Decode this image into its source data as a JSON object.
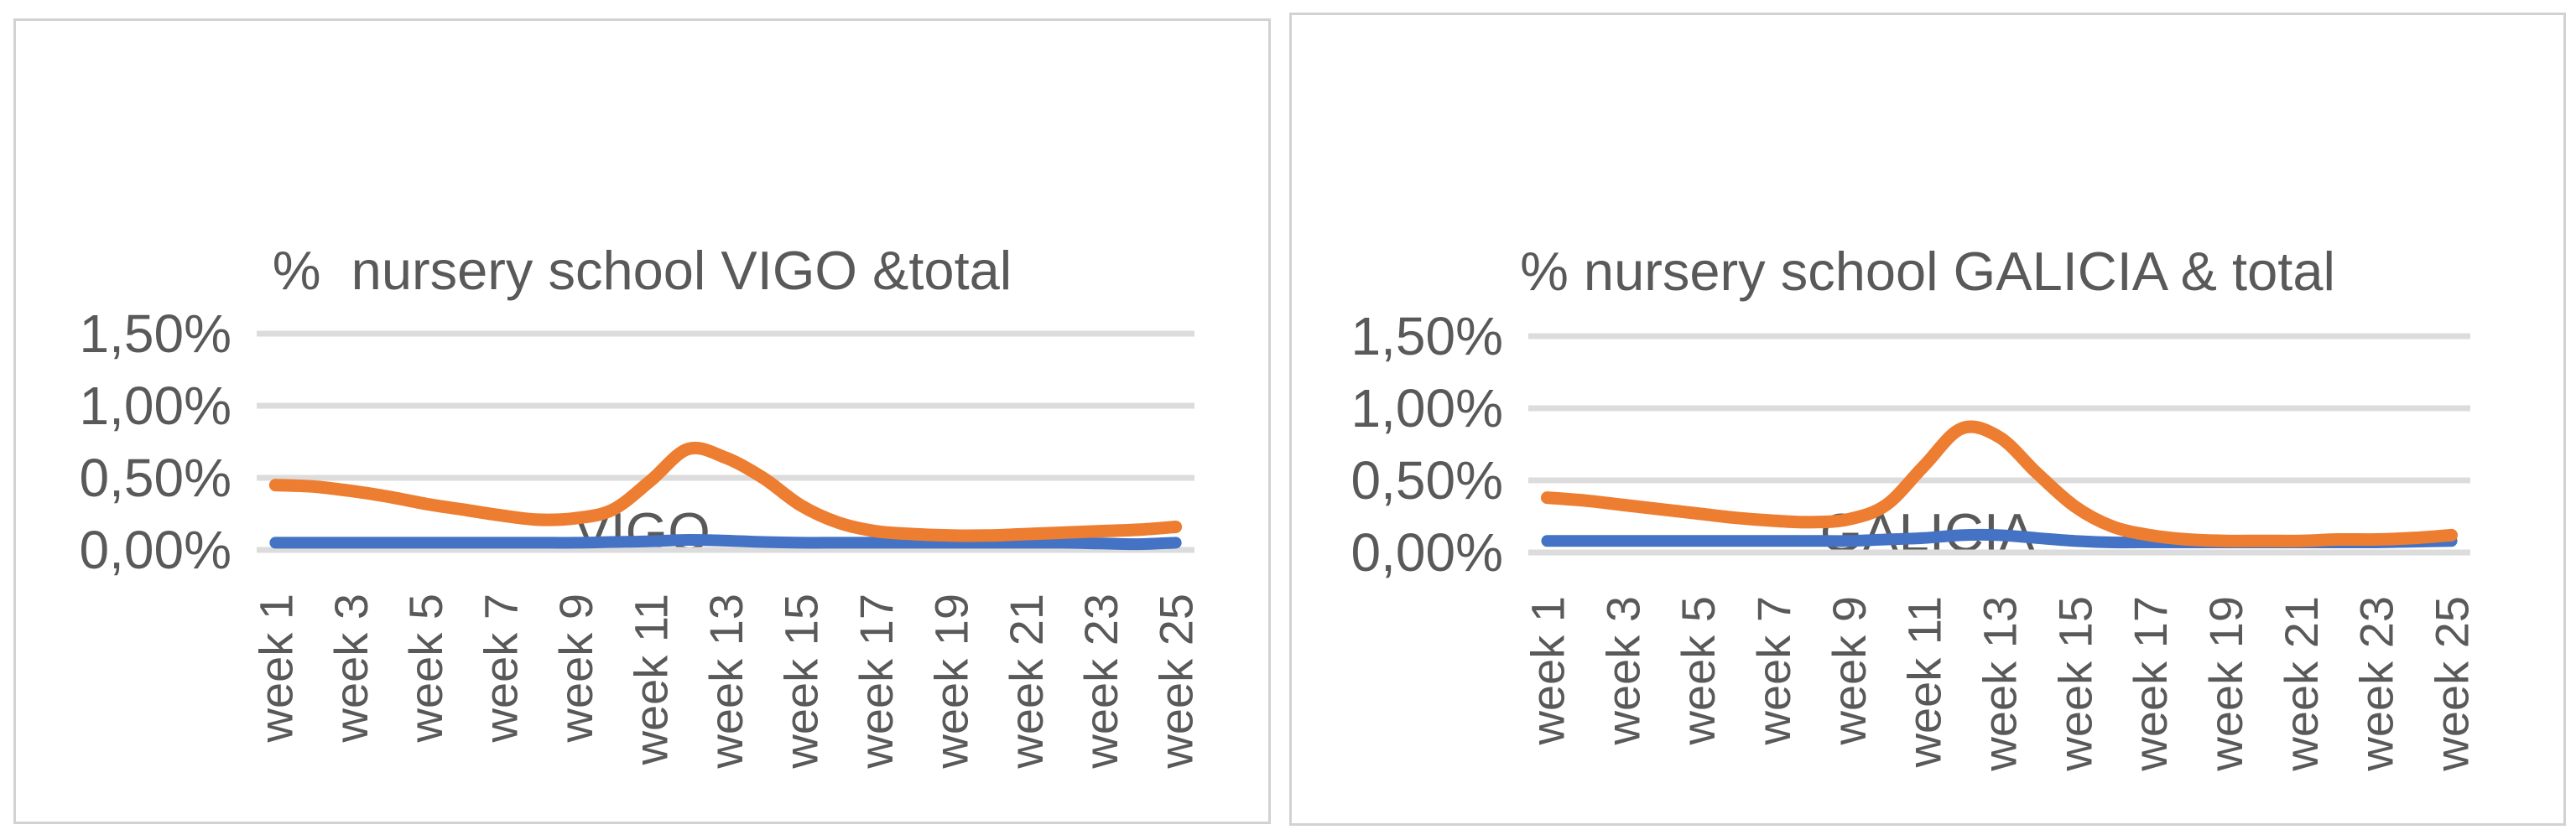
{
  "colors": {
    "series_orange": "#ED7D31",
    "series_blue": "#4472C4",
    "gridline": "#DCDCDC",
    "axis_text": "#595959",
    "title_text": "#595959",
    "panel_border": "#D2D2D2",
    "background": "#FFFFFF"
  },
  "chart_data": [
    {
      "type": "line",
      "title": "%  nursery school VIGO &total VIGO",
      "title_lines": [
        "%  nursery school VIGO &total",
        "VIGO"
      ],
      "x": [
        1,
        2,
        3,
        4,
        5,
        6,
        7,
        8,
        9,
        10,
        11,
        12,
        13,
        14,
        15,
        16,
        17,
        18,
        19,
        20,
        21,
        22,
        23,
        24,
        25
      ],
      "x_tick_labels": [
        "week 1",
        "week 3",
        "week 5",
        "week 7",
        "week 9",
        "week 11",
        "week 13",
        "week 15",
        "week 17",
        "week 19",
        "week 21",
        "week 23",
        "week 25"
      ],
      "series": [
        {
          "name": "blue",
          "color": "#4472C4",
          "values": [
            0.05,
            0.05,
            0.05,
            0.05,
            0.05,
            0.05,
            0.05,
            0.05,
            0.05,
            0.055,
            0.06,
            0.07,
            0.065,
            0.055,
            0.05,
            0.05,
            0.05,
            0.05,
            0.05,
            0.05,
            0.05,
            0.05,
            0.045,
            0.04,
            0.05
          ]
        },
        {
          "name": "orange",
          "color": "#ED7D31",
          "values": [
            0.45,
            0.44,
            0.41,
            0.37,
            0.32,
            0.28,
            0.24,
            0.21,
            0.22,
            0.28,
            0.48,
            0.7,
            0.64,
            0.5,
            0.31,
            0.19,
            0.13,
            0.11,
            0.1,
            0.1,
            0.11,
            0.12,
            0.13,
            0.14,
            0.16
          ]
        }
      ],
      "ylim": [
        0,
        1.5
      ],
      "yticks_values": [
        0,
        0.5,
        1.0,
        1.5
      ],
      "yticks_labels": [
        "0,00%",
        "0,50%",
        "1,00%",
        "1,50%"
      ],
      "grid": true,
      "legend": "none"
    },
    {
      "type": "line",
      "title": "% nursery school GALICIA & total GALICIA",
      "title_lines": [
        "% nursery school GALICIA & total",
        "GALICIA"
      ],
      "x": [
        1,
        2,
        3,
        4,
        5,
        6,
        7,
        8,
        9,
        10,
        11,
        12,
        13,
        14,
        15,
        16,
        17,
        18,
        19,
        20,
        21,
        22,
        23,
        24,
        25
      ],
      "x_tick_labels": [
        "week 1",
        "week 3",
        "week 5",
        "week 7",
        "week 9",
        "week 11",
        "week 13",
        "week 15",
        "week 17",
        "week 19",
        "week 21",
        "week 23",
        "week 25"
      ],
      "series": [
        {
          "name": "blue",
          "color": "#4472C4",
          "values": [
            0.08,
            0.08,
            0.08,
            0.08,
            0.08,
            0.08,
            0.08,
            0.08,
            0.08,
            0.09,
            0.1,
            0.12,
            0.12,
            0.1,
            0.08,
            0.07,
            0.07,
            0.07,
            0.07,
            0.07,
            0.07,
            0.07,
            0.07,
            0.075,
            0.08
          ]
        },
        {
          "name": "orange",
          "color": "#ED7D31",
          "values": [
            0.38,
            0.36,
            0.33,
            0.3,
            0.27,
            0.24,
            0.22,
            0.21,
            0.23,
            0.33,
            0.6,
            0.86,
            0.8,
            0.55,
            0.32,
            0.18,
            0.12,
            0.09,
            0.08,
            0.08,
            0.08,
            0.09,
            0.09,
            0.1,
            0.12
          ]
        }
      ],
      "ylim": [
        0,
        1.5
      ],
      "yticks_values": [
        0,
        0.5,
        1.0,
        1.5
      ],
      "yticks_labels": [
        "0,00%",
        "0,50%",
        "1,00%",
        "1,50%"
      ],
      "grid": true,
      "legend": "none"
    }
  ]
}
